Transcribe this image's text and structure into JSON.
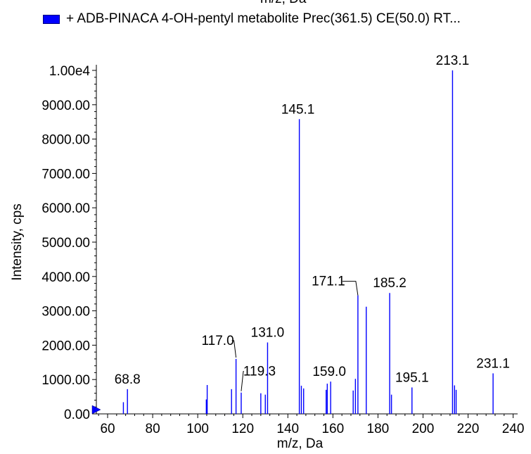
{
  "chart_data": {
    "type": "bar",
    "header_fragment": "m/z, Da",
    "legend": {
      "color": "#0000ff",
      "label": "+ ADB-PINACA 4-OH-pentyl metabolite Prec(361.5) CE(50.0) RT..."
    },
    "xlabel": "m/z, Da",
    "ylabel": "Intensity, cps",
    "xlim": [
      55,
      242
    ],
    "ylim": [
      0,
      10000
    ],
    "x_ticks": [
      60,
      80,
      100,
      120,
      140,
      160,
      180,
      200,
      220,
      240
    ],
    "y_ticks": [
      {
        "v": 0,
        "label": "0.00"
      },
      {
        "v": 1000,
        "label": "1000.00"
      },
      {
        "v": 2000,
        "label": "2000.00"
      },
      {
        "v": 3000,
        "label": "3000.00"
      },
      {
        "v": 4000,
        "label": "4000.00"
      },
      {
        "v": 5000,
        "label": "5000.00"
      },
      {
        "v": 6000,
        "label": "6000.00"
      },
      {
        "v": 7000,
        "label": "7000.00"
      },
      {
        "v": 8000,
        "label": "8000.00"
      },
      {
        "v": 9000,
        "label": "9000.00"
      },
      {
        "v": 10000,
        "label": "1.00e4"
      }
    ],
    "series_color": "#0000ff",
    "peaks": [
      {
        "mz": 67.0,
        "intensity": 340
      },
      {
        "mz": 68.8,
        "intensity": 720
      },
      {
        "mz": 103.8,
        "intensity": 420
      },
      {
        "mz": 104.2,
        "intensity": 840
      },
      {
        "mz": 115.0,
        "intensity": 720
      },
      {
        "mz": 117.0,
        "intensity": 1600
      },
      {
        "mz": 119.3,
        "intensity": 620
      },
      {
        "mz": 128.0,
        "intensity": 600
      },
      {
        "mz": 130.0,
        "intensity": 560
      },
      {
        "mz": 131.0,
        "intensity": 2080
      },
      {
        "mz": 145.1,
        "intensity": 8580
      },
      {
        "mz": 146.0,
        "intensity": 820
      },
      {
        "mz": 147.0,
        "intensity": 740
      },
      {
        "mz": 157.0,
        "intensity": 700
      },
      {
        "mz": 157.5,
        "intensity": 880
      },
      {
        "mz": 159.0,
        "intensity": 940
      },
      {
        "mz": 169.0,
        "intensity": 680
      },
      {
        "mz": 170.0,
        "intensity": 1020
      },
      {
        "mz": 171.1,
        "intensity": 3450
      },
      {
        "mz": 174.8,
        "intensity": 3120
      },
      {
        "mz": 185.2,
        "intensity": 3520
      },
      {
        "mz": 186.0,
        "intensity": 560
      },
      {
        "mz": 195.1,
        "intensity": 770
      },
      {
        "mz": 213.1,
        "intensity": 10000
      },
      {
        "mz": 214.0,
        "intensity": 830
      },
      {
        "mz": 214.7,
        "intensity": 700
      },
      {
        "mz": 231.1,
        "intensity": 1180
      }
    ],
    "peak_labels": [
      {
        "text": "68.8",
        "mz": 68.8,
        "intensity": 720,
        "dx": 0,
        "dy": -8,
        "leader": false
      },
      {
        "text": "117.0",
        "mz": 117.0,
        "intensity": 1600,
        "dx": -26,
        "dy": -20,
        "leader": true
      },
      {
        "text": "119.3",
        "mz": 119.3,
        "intensity": 620,
        "dx": 26,
        "dy": -24,
        "leader": true
      },
      {
        "text": "131.0",
        "mz": 131.0,
        "intensity": 2080,
        "dx": 0,
        "dy": -8,
        "leader": false
      },
      {
        "text": "145.1",
        "mz": 145.1,
        "intensity": 8580,
        "dx": -2,
        "dy": -8,
        "leader": false
      },
      {
        "text": "159.0",
        "mz": 159.0,
        "intensity": 940,
        "dx": -2,
        "dy": -8,
        "leader": false
      },
      {
        "text": "171.1",
        "mz": 171.1,
        "intensity": 3450,
        "dx": -42,
        "dy": -14,
        "leader": true
      },
      {
        "text": "185.2",
        "mz": 185.2,
        "intensity": 3520,
        "dx": 0,
        "dy": -8,
        "leader": false
      },
      {
        "text": "195.1",
        "mz": 195.1,
        "intensity": 770,
        "dx": 0,
        "dy": -8,
        "leader": false
      },
      {
        "text": "213.1",
        "mz": 213.1,
        "intensity": 10000,
        "dx": 0,
        "dy": -8,
        "leader": false
      },
      {
        "text": "231.1",
        "mz": 231.1,
        "intensity": 1180,
        "dx": 0,
        "dy": -8,
        "leader": false
      }
    ]
  }
}
